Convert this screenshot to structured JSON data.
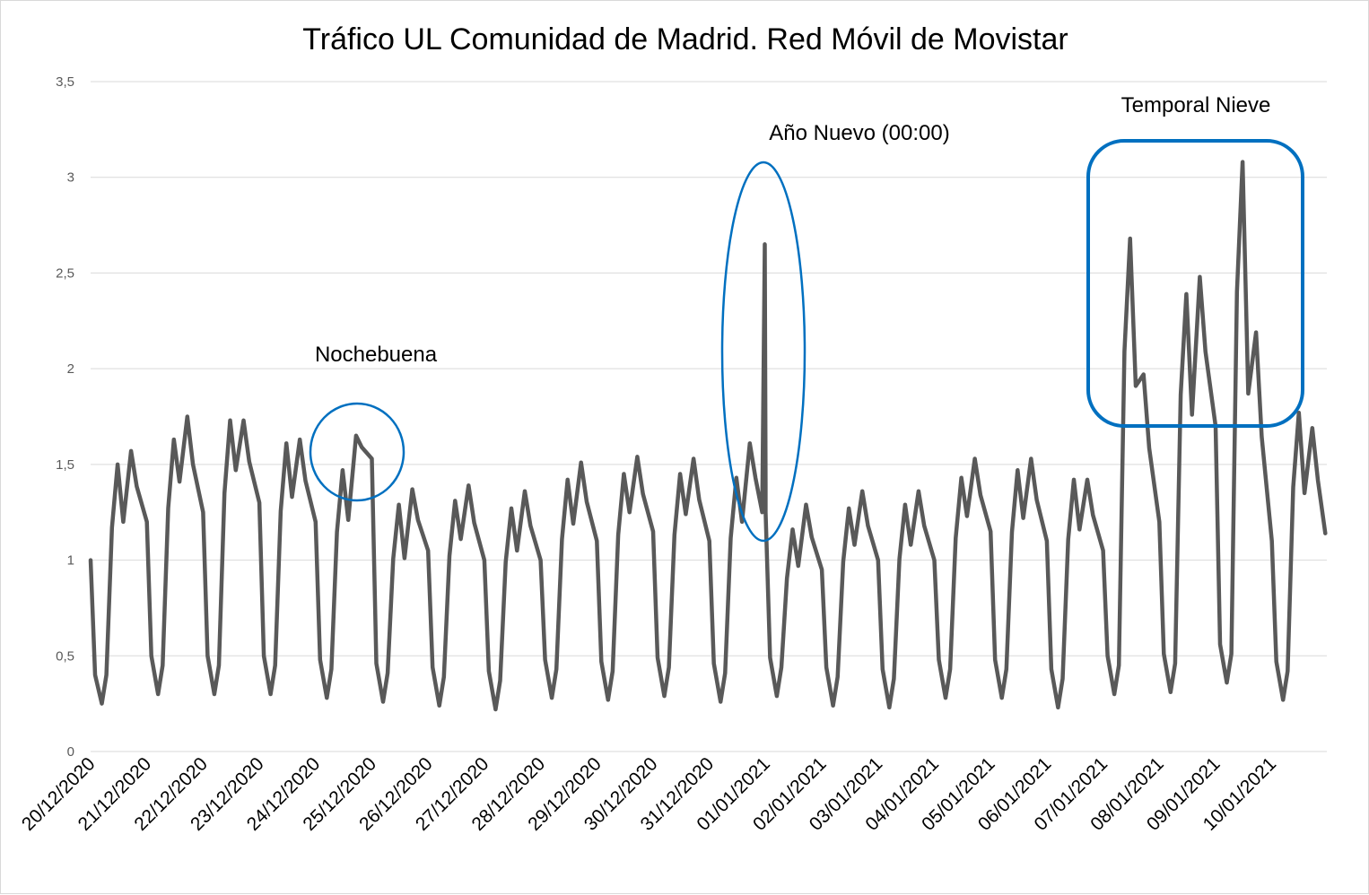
{
  "chart_data": {
    "type": "line",
    "title": "Tráfico UL Comunidad de Madrid. Red Móvil de Movistar",
    "xlabel": "",
    "ylabel": "",
    "ylim": [
      0,
      3.5
    ],
    "grid": true,
    "y_ticks": [
      "0",
      "0,5",
      "1",
      "1,5",
      "2",
      "2,5",
      "3",
      "3,5"
    ],
    "y_tick_values": [
      0,
      0.5,
      1,
      1.5,
      2,
      2.5,
      3,
      3.5
    ],
    "x_ticks": [
      "20/12/2020",
      "21/12/2020",
      "22/12/2020",
      "23/12/2020",
      "24/12/2020",
      "25/12/2020",
      "26/12/2020",
      "27/12/2020",
      "28/12/2020",
      "29/12/2020",
      "30/12/2020",
      "31/12/2020",
      "01/01/2021",
      "02/01/2021",
      "03/01/2021",
      "04/01/2021",
      "05/01/2021",
      "06/01/2021",
      "07/01/2021",
      "08/01/2021",
      "09/01/2021",
      "10/01/2021"
    ],
    "x_start": "20/12/2020 00:00",
    "x_end": "11/01/2021 12:00",
    "line_color": "#595959",
    "annotation_color": "#0070c0",
    "annotations": [
      {
        "text": "Nochebuena",
        "shape": "ellipse",
        "day": 4.9
      },
      {
        "text": "Año Nuevo (00:00)",
        "shape": "ellipse",
        "day": 12.0
      },
      {
        "text": "Temporal Nieve",
        "shape": "rounded-rect",
        "day": 19.8
      }
    ],
    "series": [
      {
        "day_profiles": [
          {
            "date": "20/12/2020",
            "min": 0.25,
            "peak1": 1.5,
            "dip": 1.2,
            "peak2": 1.57,
            "late": 1.2
          },
          {
            "date": "21/12/2020",
            "min": 0.3,
            "peak1": 1.63,
            "dip": 1.41,
            "peak2": 1.75,
            "late": 1.25
          },
          {
            "date": "22/12/2020",
            "min": 0.3,
            "peak1": 1.73,
            "dip": 1.47,
            "peak2": 1.73,
            "late": 1.3
          },
          {
            "date": "23/12/2020",
            "min": 0.3,
            "peak1": 1.61,
            "dip": 1.33,
            "peak2": 1.63,
            "late": 1.2
          },
          {
            "date": "24/12/2020",
            "min": 0.28,
            "peak1": 1.47,
            "dip": 1.21,
            "peak2": 1.65,
            "late": 1.53
          },
          {
            "date": "25/12/2020",
            "min": 0.26,
            "peak1": 1.29,
            "dip": 1.01,
            "peak2": 1.37,
            "late": 1.05
          },
          {
            "date": "26/12/2020",
            "min": 0.24,
            "peak1": 1.31,
            "dip": 1.11,
            "peak2": 1.39,
            "late": 1.0
          },
          {
            "date": "27/12/2020",
            "min": 0.22,
            "peak1": 1.27,
            "dip": 1.05,
            "peak2": 1.36,
            "late": 1.0
          },
          {
            "date": "28/12/2020",
            "min": 0.28,
            "peak1": 1.42,
            "dip": 1.19,
            "peak2": 1.51,
            "late": 1.1
          },
          {
            "date": "29/12/2020",
            "min": 0.27,
            "peak1": 1.45,
            "dip": 1.25,
            "peak2": 1.54,
            "late": 1.15
          },
          {
            "date": "30/12/2020",
            "min": 0.29,
            "peak1": 1.45,
            "dip": 1.24,
            "peak2": 1.53,
            "late": 1.1
          },
          {
            "date": "31/12/2020",
            "min": 0.26,
            "peak1": 1.43,
            "dip": 1.2,
            "peak2": 1.61,
            "late": 1.25,
            "midnight_spike": 2.65
          },
          {
            "date": "01/01/2021",
            "min": 0.29,
            "peak1": 1.16,
            "dip": 0.97,
            "peak2": 1.29,
            "late": 0.95
          },
          {
            "date": "02/01/2021",
            "min": 0.24,
            "peak1": 1.27,
            "dip": 1.08,
            "peak2": 1.36,
            "late": 1.0
          },
          {
            "date": "03/01/2021",
            "min": 0.23,
            "peak1": 1.29,
            "dip": 1.08,
            "peak2": 1.36,
            "late": 1.0
          },
          {
            "date": "04/01/2021",
            "min": 0.28,
            "peak1": 1.43,
            "dip": 1.23,
            "peak2": 1.53,
            "late": 1.15
          },
          {
            "date": "05/01/2021",
            "min": 0.28,
            "peak1": 1.47,
            "dip": 1.22,
            "peak2": 1.53,
            "late": 1.1
          },
          {
            "date": "06/01/2021",
            "min": 0.23,
            "peak1": 1.42,
            "dip": 1.16,
            "peak2": 1.42,
            "late": 1.05
          },
          {
            "date": "07/01/2021",
            "min": 0.3,
            "peak1": 2.68,
            "dip": 1.91,
            "peak2": 1.97,
            "late": 1.2
          },
          {
            "date": "08/01/2021",
            "min": 0.31,
            "peak1": 2.39,
            "dip": 1.76,
            "peak2": 2.48,
            "late": 1.7
          },
          {
            "date": "09/01/2021",
            "min": 0.36,
            "peak1": 3.08,
            "dip": 1.87,
            "peak2": 2.19,
            "late": 1.1
          },
          {
            "date": "10/01/2021",
            "min": 0.27,
            "peak1": 1.77,
            "dip": 1.35,
            "peak2": 1.69,
            "late": 1.14
          }
        ]
      }
    ]
  }
}
